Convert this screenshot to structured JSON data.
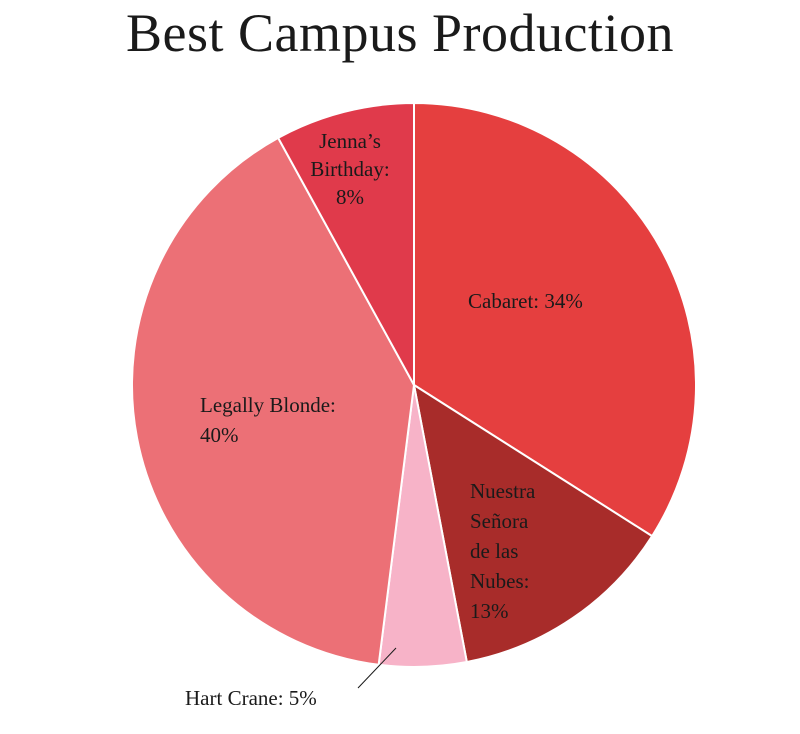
{
  "chart_data": {
    "type": "pie",
    "title": "Best Campus Production",
    "slices": [
      {
        "label_lines": [
          "Cabaret: 34%"
        ],
        "value": 34,
        "color": "#e53f3f"
      },
      {
        "label_lines": [
          "Nuestra",
          "Señora",
          "de las",
          "Nubes:",
          "13%"
        ],
        "value": 13,
        "color": "#a82c2a"
      },
      {
        "label_lines": [
          "Hart Crane: 5%"
        ],
        "value": 5,
        "color": "#f7b3c8"
      },
      {
        "label_lines": [
          "Legally Blonde:",
          "40%"
        ],
        "value": 40,
        "color": "#ec7076"
      },
      {
        "label_lines": [
          "Jenna’s",
          "Birthday:",
          "8%"
        ],
        "value": 8,
        "color": "#e03a4b"
      }
    ]
  }
}
